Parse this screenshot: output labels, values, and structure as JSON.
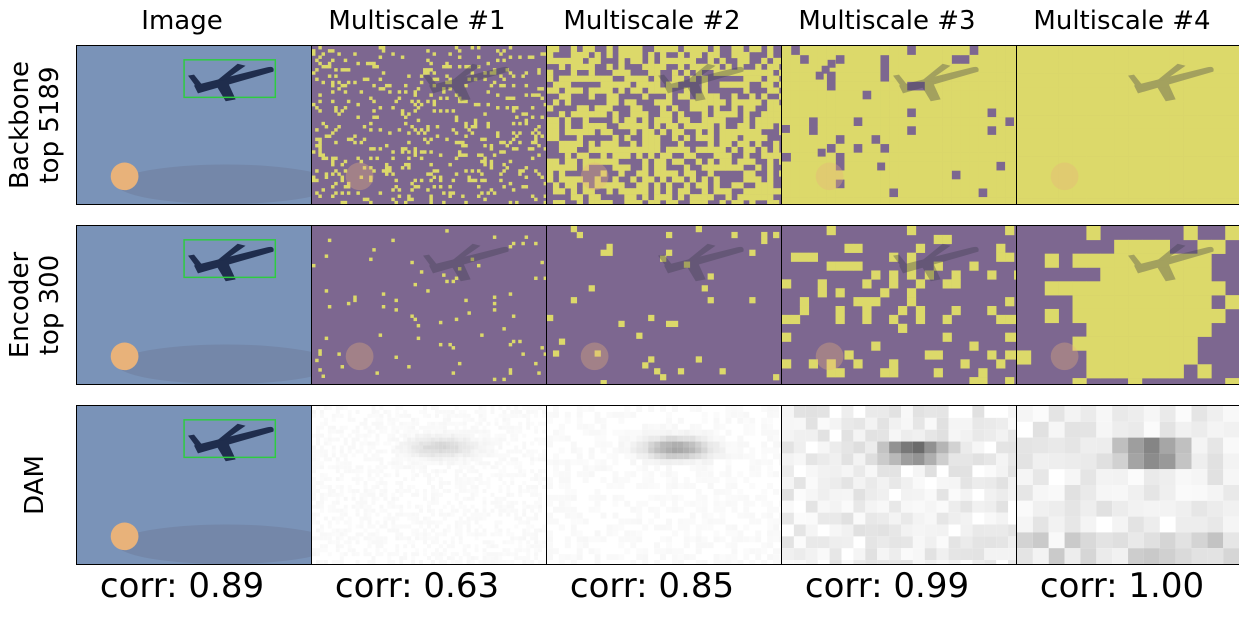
{
  "columns": [
    "Image",
    "Multiscale #1",
    "Multiscale #2",
    "Multiscale #3",
    "Multiscale #4"
  ],
  "rows": [
    {
      "label_line1": "Backbone",
      "label_line2": "top 5189",
      "type": "mask"
    },
    {
      "label_line1": "Encoder",
      "label_line2": "top 300",
      "type": "mask"
    },
    {
      "label_line1": "DAM",
      "label_line2": "",
      "type": "heatmap"
    }
  ],
  "corr": [
    "corr: 0.89",
    "corr: 0.63",
    "corr: 0.85",
    "corr: 0.99",
    "corr: 1.00"
  ],
  "colors": {
    "sky": "#7a93b8",
    "mask_on": "#dcd96a",
    "mask_off": "#7d6790",
    "box": "#2ecc40",
    "plane": "#1f2d4d",
    "moon": "#e8b27a"
  },
  "mask_density": [
    [
      0.15,
      0.55,
      0.92,
      1.0
    ],
    [
      0.02,
      0.04,
      0.22,
      0.6
    ]
  ]
}
